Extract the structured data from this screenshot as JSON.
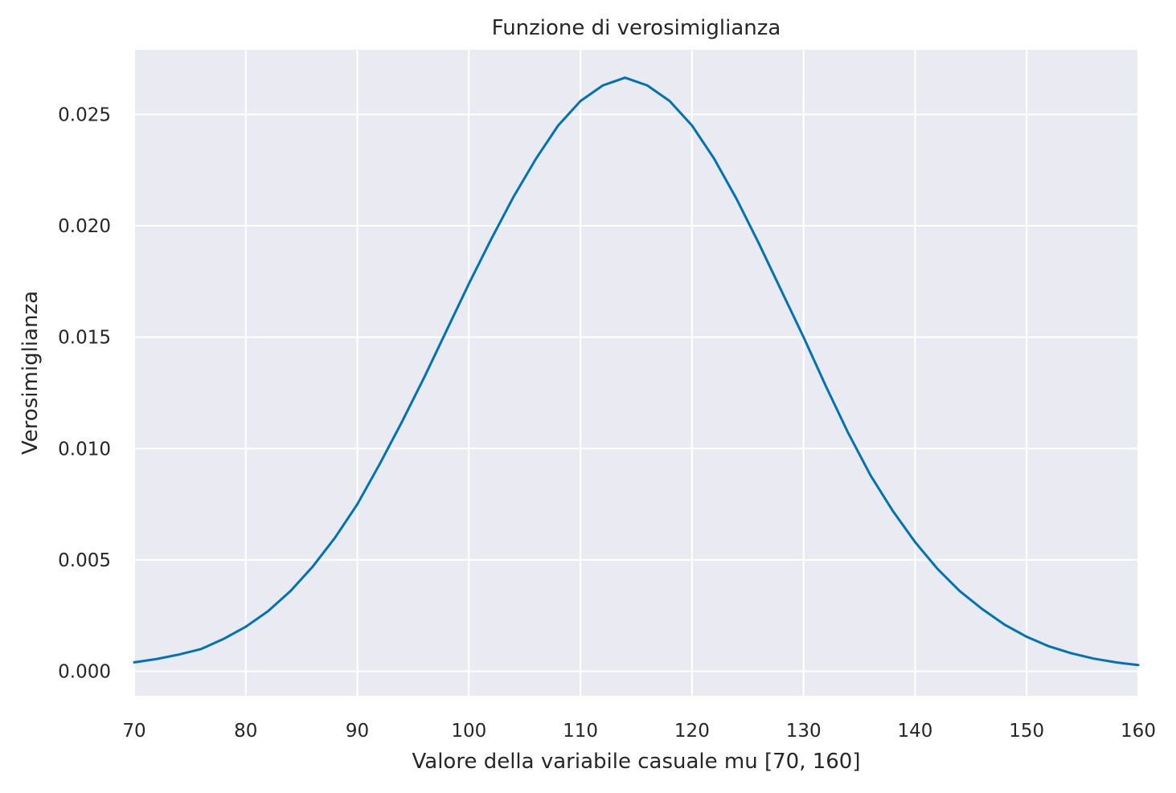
{
  "chart_data": {
    "type": "line",
    "title": "Funzione di verosimiglianza",
    "xlabel": "Valore della variabile casuale mu [70, 160]",
    "ylabel": "Verosimiglianza",
    "xlim": [
      70,
      160
    ],
    "ylim": [
      -0.0011,
      0.0279
    ],
    "grid": true,
    "background": "#eaeaf2",
    "grid_color": "#ffffff",
    "line_color": "#0173b2",
    "x_ticks": [
      70,
      80,
      90,
      100,
      110,
      120,
      130,
      140,
      150,
      160
    ],
    "x_tick_labels": [
      "70",
      "80",
      "90",
      "100",
      "110",
      "120",
      "130",
      "140",
      "150",
      "160"
    ],
    "y_ticks": [
      0.0,
      0.005,
      0.01,
      0.015,
      0.02,
      0.025
    ],
    "y_tick_labels": [
      "0.000",
      "0.005",
      "0.010",
      "0.015",
      "0.020",
      "0.025"
    ],
    "series": [
      {
        "x": [
          70,
          72,
          74,
          76,
          78,
          80,
          82,
          84,
          86,
          88,
          90,
          92,
          94,
          96,
          98,
          100,
          102,
          104,
          106,
          108,
          110,
          112,
          114,
          116,
          118,
          120,
          122,
          124,
          126,
          128,
          130,
          132,
          134,
          136,
          138,
          140,
          142,
          144,
          146,
          148,
          150,
          152,
          154,
          156,
          158,
          160
        ],
        "y": [
          0.0004,
          0.00055,
          0.00075,
          0.001,
          0.00145,
          0.002,
          0.0027,
          0.0036,
          0.0047,
          0.006,
          0.0075,
          0.0093,
          0.0112,
          0.0132,
          0.0153,
          0.0174,
          0.0194,
          0.0213,
          0.023,
          0.0245,
          0.0256,
          0.0263,
          0.02665,
          0.0263,
          0.0256,
          0.0245,
          0.023,
          0.0212,
          0.0192,
          0.0171,
          0.015,
          0.0128,
          0.0107,
          0.0088,
          0.0072,
          0.0058,
          0.0046,
          0.0036,
          0.0028,
          0.0021,
          0.00155,
          0.00112,
          0.00081,
          0.00057,
          0.0004,
          0.00028
        ]
      }
    ]
  }
}
